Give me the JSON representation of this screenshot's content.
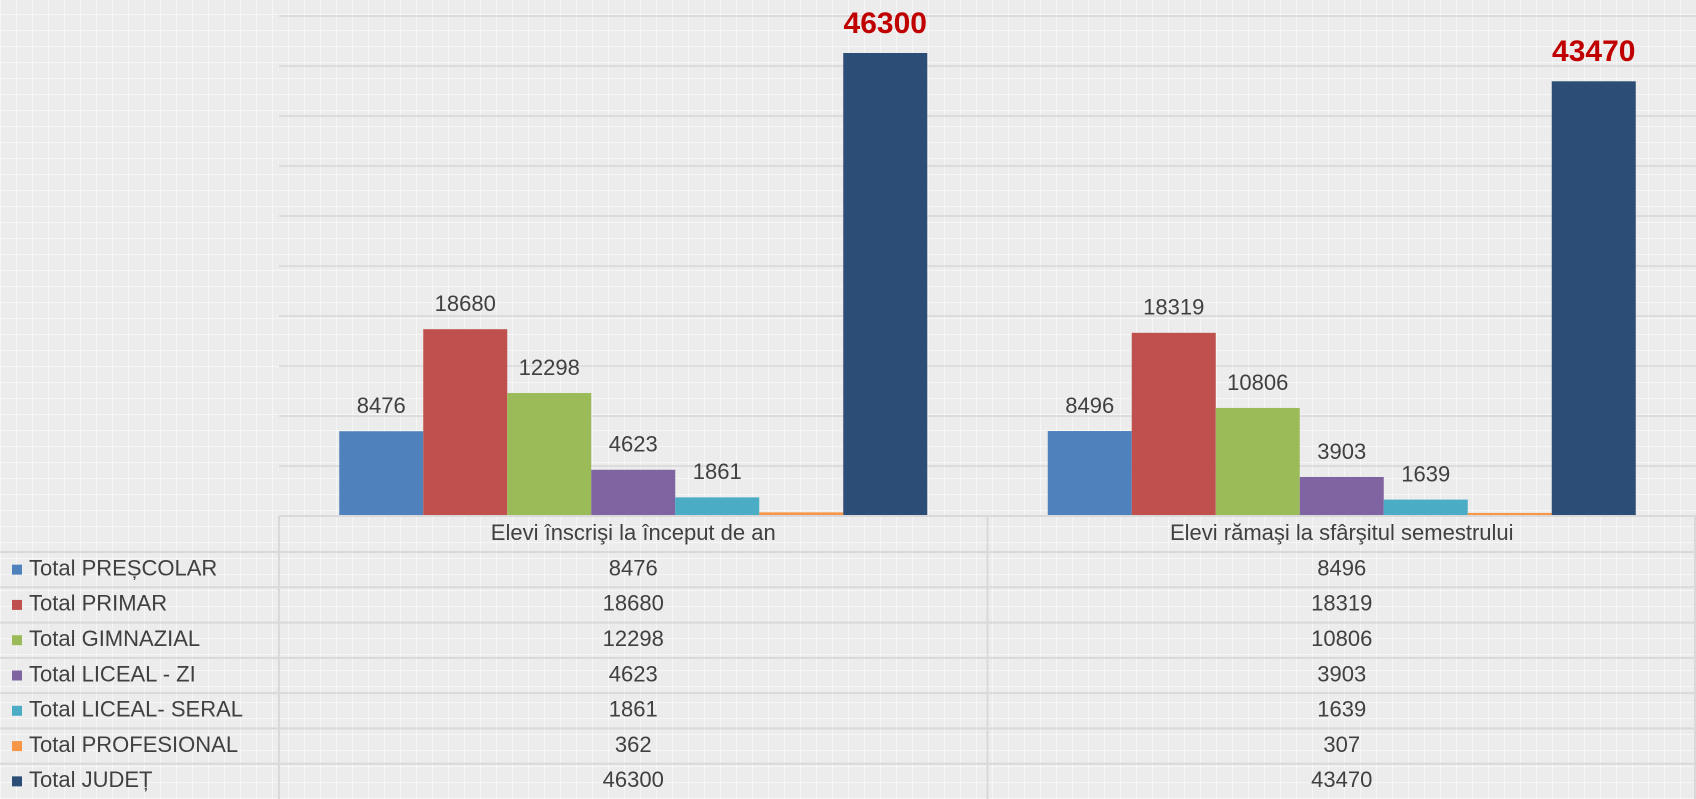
{
  "chart_data": {
    "type": "bar",
    "categories": [
      "Elevi înscrişi la început de an",
      "Elevi rămaşi la sfârşitul semestrului"
    ],
    "series": [
      {
        "name": "Total PREȘCOLAR",
        "color": "#4f81bd",
        "values": [
          8476,
          8496
        ]
      },
      {
        "name": "Total PRIMAR",
        "color": "#c0504d",
        "values": [
          18680,
          18319
        ]
      },
      {
        "name": "Total GIMNAZIAL",
        "color": "#9bbb59",
        "values": [
          12298,
          10806
        ]
      },
      {
        "name": "Total LICEAL - ZI",
        "color": "#8064a2",
        "values": [
          4623,
          3903
        ]
      },
      {
        "name": "Total LICEAL- SERAL",
        "color": "#4bacc6",
        "values": [
          1861,
          1639
        ]
      },
      {
        "name": "Total PROFESIONAL",
        "color": "#f79646",
        "values": [
          362,
          307
        ],
        "show_labels": false
      },
      {
        "name": "Total JUDEȚ",
        "color": "#2c4d75",
        "values": [
          46300,
          43470
        ],
        "label_color": "#c00000"
      }
    ],
    "ylim": [
      0,
      50000
    ],
    "yticks": [
      0,
      5000,
      10000,
      15000,
      20000,
      25000,
      30000,
      35000,
      40000,
      45000,
      50000
    ],
    "grid": true
  }
}
